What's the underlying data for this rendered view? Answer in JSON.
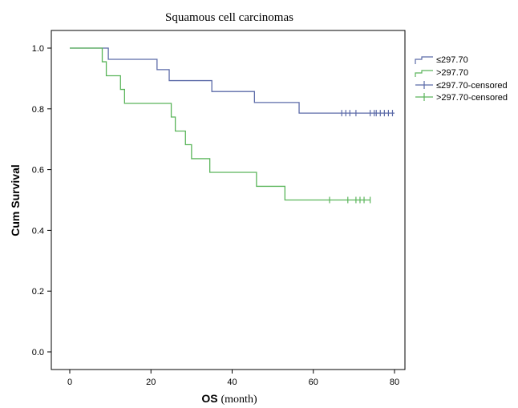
{
  "chart_data": {
    "type": "line",
    "subtype": "kaplan-meier",
    "title": "Squamous cell carcinomas",
    "xlabel": "OS",
    "xlabel_unit": "(month)",
    "ylabel": "Cum Survival",
    "xlim": [
      0,
      80
    ],
    "ylim": [
      0,
      1.0
    ],
    "x_ticks": [
      "0",
      "20",
      "40",
      "60",
      "80"
    ],
    "y_ticks": [
      "0.0",
      "0.2",
      "0.4",
      "0.6",
      "0.8",
      "1.0"
    ],
    "grid": false,
    "legend_position": "right",
    "series": [
      {
        "name": "≤297.70",
        "censored_name": "≤297.70-censored",
        "color": "#5b6aa8",
        "steps": [
          [
            0,
            1.0
          ],
          [
            9.5,
            0.963
          ],
          [
            21.5,
            0.929
          ],
          [
            24.5,
            0.893
          ],
          [
            35,
            0.857
          ],
          [
            45.5,
            0.821
          ],
          [
            56.5,
            0.786
          ]
        ],
        "end_x": 80,
        "censored": [
          67,
          68,
          69,
          70.5,
          74,
          75,
          75.5,
          76.5,
          77.5,
          78.5,
          79.5
        ]
      },
      {
        "name": ">297.70",
        "censored_name": ">297.70-censored",
        "color": "#5ab55a",
        "steps": [
          [
            0,
            1.0
          ],
          [
            8,
            0.955
          ],
          [
            9,
            0.909
          ],
          [
            12.5,
            0.864
          ],
          [
            13.5,
            0.818
          ],
          [
            25,
            0.773
          ],
          [
            26,
            0.727
          ],
          [
            28.5,
            0.682
          ],
          [
            30,
            0.636
          ],
          [
            34.5,
            0.591
          ],
          [
            46,
            0.545
          ],
          [
            53,
            0.5
          ]
        ],
        "end_x": 74,
        "censored": [
          64,
          68.5,
          70.5,
          71.5,
          72.5,
          74
        ]
      }
    ]
  }
}
